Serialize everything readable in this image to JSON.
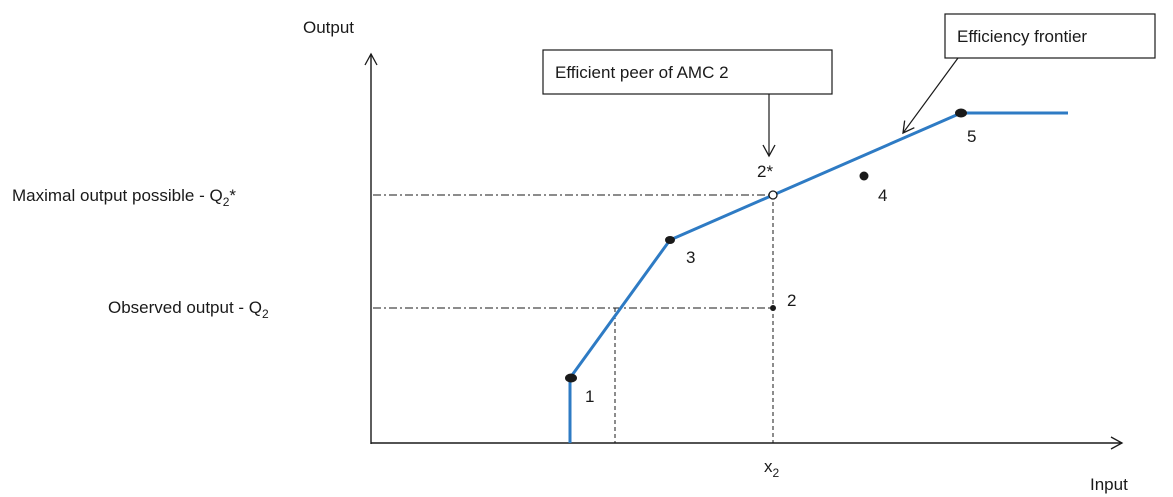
{
  "axes": {
    "y_label": "Output",
    "x_label": "Input"
  },
  "levels": {
    "q_max": {
      "prefix": "Maximal output possible -  Q",
      "sub": "2",
      "suffix": "*"
    },
    "q_obs": {
      "prefix": "Observed output - Q",
      "sub": "2"
    },
    "x2": {
      "base": "x",
      "sub": "2"
    }
  },
  "callouts": {
    "peer": "Efficient peer of AMC 2",
    "frontier": "Efficiency frontier"
  },
  "points": {
    "p1": "1",
    "p2": "2",
    "p2_star": "2*",
    "p3": "3",
    "p4": "4",
    "p5": "5"
  },
  "colors": {
    "frontier": "#2e7bc4",
    "ink": "#1a1a1a"
  }
}
